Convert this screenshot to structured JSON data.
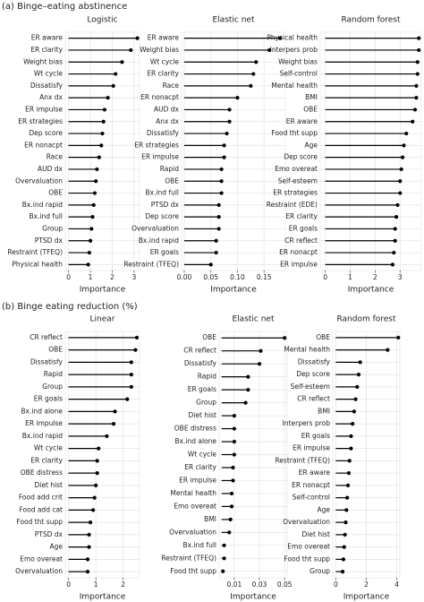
{
  "sections": [
    "(a) Binge–eating abstinence",
    "(b) Binge eating reduction (%)"
  ],
  "chart_data": [
    {
      "type": "lollipop",
      "title": "Logistic",
      "xlabel": "Importance",
      "color": "#000000",
      "grid": true,
      "categories": [
        "ER aware",
        "ER clarity",
        "Weight bias",
        "Wt cycle",
        "Dissatisfy",
        "Anx dx",
        "ER impulse",
        "ER strategies",
        "Dep score",
        "ER nonacpt",
        "Race",
        "AUD dx",
        "Overvaluation",
        "OBE",
        "Bx.ind rapid",
        "Bx.ind full",
        "Group",
        "PTSD dx",
        "Restraint (TFEQ)",
        "Physical health"
      ],
      "values": [
        3.15,
        2.85,
        2.45,
        2.15,
        2.05,
        1.8,
        1.65,
        1.6,
        1.55,
        1.5,
        1.4,
        1.3,
        1.25,
        1.2,
        1.15,
        1.1,
        1.05,
        1.0,
        0.95,
        0.9
      ],
      "xlim": [
        -0.15,
        3.25
      ],
      "xticks": [
        0,
        1,
        2,
        3
      ]
    },
    {
      "type": "lollipop",
      "title": "Elastic net",
      "xlabel": "Importance",
      "color": "#000000",
      "grid": true,
      "categories": [
        "ER aware",
        "Weight bias",
        "Wt cycle",
        "ER clarity",
        "Race",
        "ER nonacpt",
        "AUD dx",
        "Anx dx",
        "Dissatisfy",
        "ER strategies",
        "ER impulse",
        "Rapid",
        "OBE",
        "Bx.ind full",
        "PTSD dx",
        "Dep score",
        "Overvaluation",
        "Bx.ind rapid",
        "ER goals",
        "Restraint (TFEQ)"
      ],
      "values": [
        0.18,
        0.16,
        0.135,
        0.13,
        0.125,
        0.1,
        0.085,
        0.085,
        0.08,
        0.075,
        0.075,
        0.07,
        0.07,
        0.07,
        0.065,
        0.065,
        0.065,
        0.06,
        0.06,
        0.05
      ],
      "xlim": [
        -0.005,
        0.19
      ],
      "xticks": [
        {
          "value": 0,
          "label": "0.00"
        },
        {
          "value": 0.05,
          "label": "0.05"
        },
        {
          "value": 0.1,
          "label": "0.10"
        },
        {
          "value": 0.15,
          "label": "0.15"
        }
      ]
    },
    {
      "type": "lollipop",
      "title": "Random forest",
      "xlabel": "Importance",
      "color": "#000000",
      "grid": true,
      "categories": [
        "Physical health",
        "Interpers prob",
        "Weight bias",
        "Self-control",
        "Mental health",
        "BMI",
        "OBE",
        "ER aware",
        "Food tht supp",
        "Age",
        "Dep score",
        "Emo overeat",
        "Self-esteem",
        "ER strategies",
        "Restraint (EDE)",
        "ER clarity",
        "ER goals",
        "CR reflect",
        "ER nonacpt",
        "ER impulse"
      ],
      "values": [
        3.75,
        3.75,
        3.7,
        3.7,
        3.65,
        3.65,
        3.6,
        3.5,
        3.25,
        3.15,
        3.1,
        3.05,
        3.0,
        3.0,
        2.9,
        2.85,
        2.8,
        2.8,
        2.75,
        2.7
      ],
      "xlim": [
        -0.2,
        3.85
      ],
      "xticks": [
        0,
        1,
        2,
        3
      ]
    },
    {
      "type": "lollipop",
      "title": "Linear",
      "xlabel": "Importance",
      "color": "#000000",
      "grid": true,
      "categories": [
        "CR reflect",
        "OBE",
        "Dissatisfy",
        "Rapid",
        "Group",
        "ER goals",
        "Bx.ind alone",
        "ER impulse",
        "Bx.ind rapid",
        "Wt cycle",
        "ER clarity",
        "OBE distress",
        "Diet hist",
        "Food add crit",
        "Food add cat",
        "Food tht supp",
        "PTSD dx",
        "Age",
        "Emo overeat",
        "Overvaluation"
      ],
      "values": [
        2.5,
        2.45,
        2.3,
        2.3,
        2.3,
        2.15,
        1.7,
        1.65,
        1.4,
        1.1,
        1.05,
        1.05,
        1.0,
        0.95,
        0.9,
        0.8,
        0.75,
        0.75,
        0.7,
        0.7
      ],
      "xlim": [
        -0.12,
        2.6
      ],
      "xticks": [
        0,
        1,
        2
      ]
    },
    {
      "type": "lollipop",
      "title": "Elastic net",
      "xlabel": "Importance",
      "color": "#000000",
      "grid": true,
      "categories": [
        "OBE",
        "CR reflect",
        "Dissatisfy",
        "Rapid",
        "ER goals",
        "Group",
        "Diet hist",
        "OBE distress",
        "Bx.ind alone",
        "Wt cycle",
        "ER clarity",
        "ER impulse",
        "Mental health",
        "Emo overeat",
        "BMI",
        "Overvaluation",
        "Bx.ind full",
        "Restraint (TFEQ)",
        "Food tht supp"
      ],
      "values": [
        0.05,
        0.031,
        0.03,
        0.021,
        0.021,
        0.019,
        0.01,
        0.01,
        0.01,
        0.01,
        0.009,
        0.009,
        0.008,
        0.008,
        0.007,
        0.006,
        0.002,
        0.002,
        0.001
      ],
      "xlim": [
        -0.002,
        0.052
      ],
      "xticks": [
        0.01,
        0.03,
        0.05
      ]
    },
    {
      "type": "lollipop",
      "title": "Random forest",
      "xlabel": "Importance",
      "color": "#000000",
      "grid": true,
      "categories": [
        "OBE",
        "Mental health",
        "Dissatisfy",
        "Dep score",
        "Self-esteem",
        "CR reflect",
        "BMI",
        "Interpers prob",
        "ER goals",
        "ER impulse",
        "Restraint (TFEQ)",
        "ER aware",
        "ER nonacpt",
        "Self-control",
        "Age",
        "Overvaluation",
        "Diet hist",
        "Emo overeat",
        "Food tht supp",
        "Group"
      ],
      "values": [
        4.1,
        3.4,
        1.6,
        1.5,
        1.4,
        1.3,
        1.2,
        1.1,
        1.0,
        1.0,
        0.9,
        0.85,
        0.8,
        0.75,
        0.7,
        0.65,
        0.6,
        0.55,
        0.5,
        0.45
      ],
      "xlim": [
        -0.2,
        4.2
      ],
      "xticks": [
        0,
        2,
        4
      ]
    }
  ]
}
